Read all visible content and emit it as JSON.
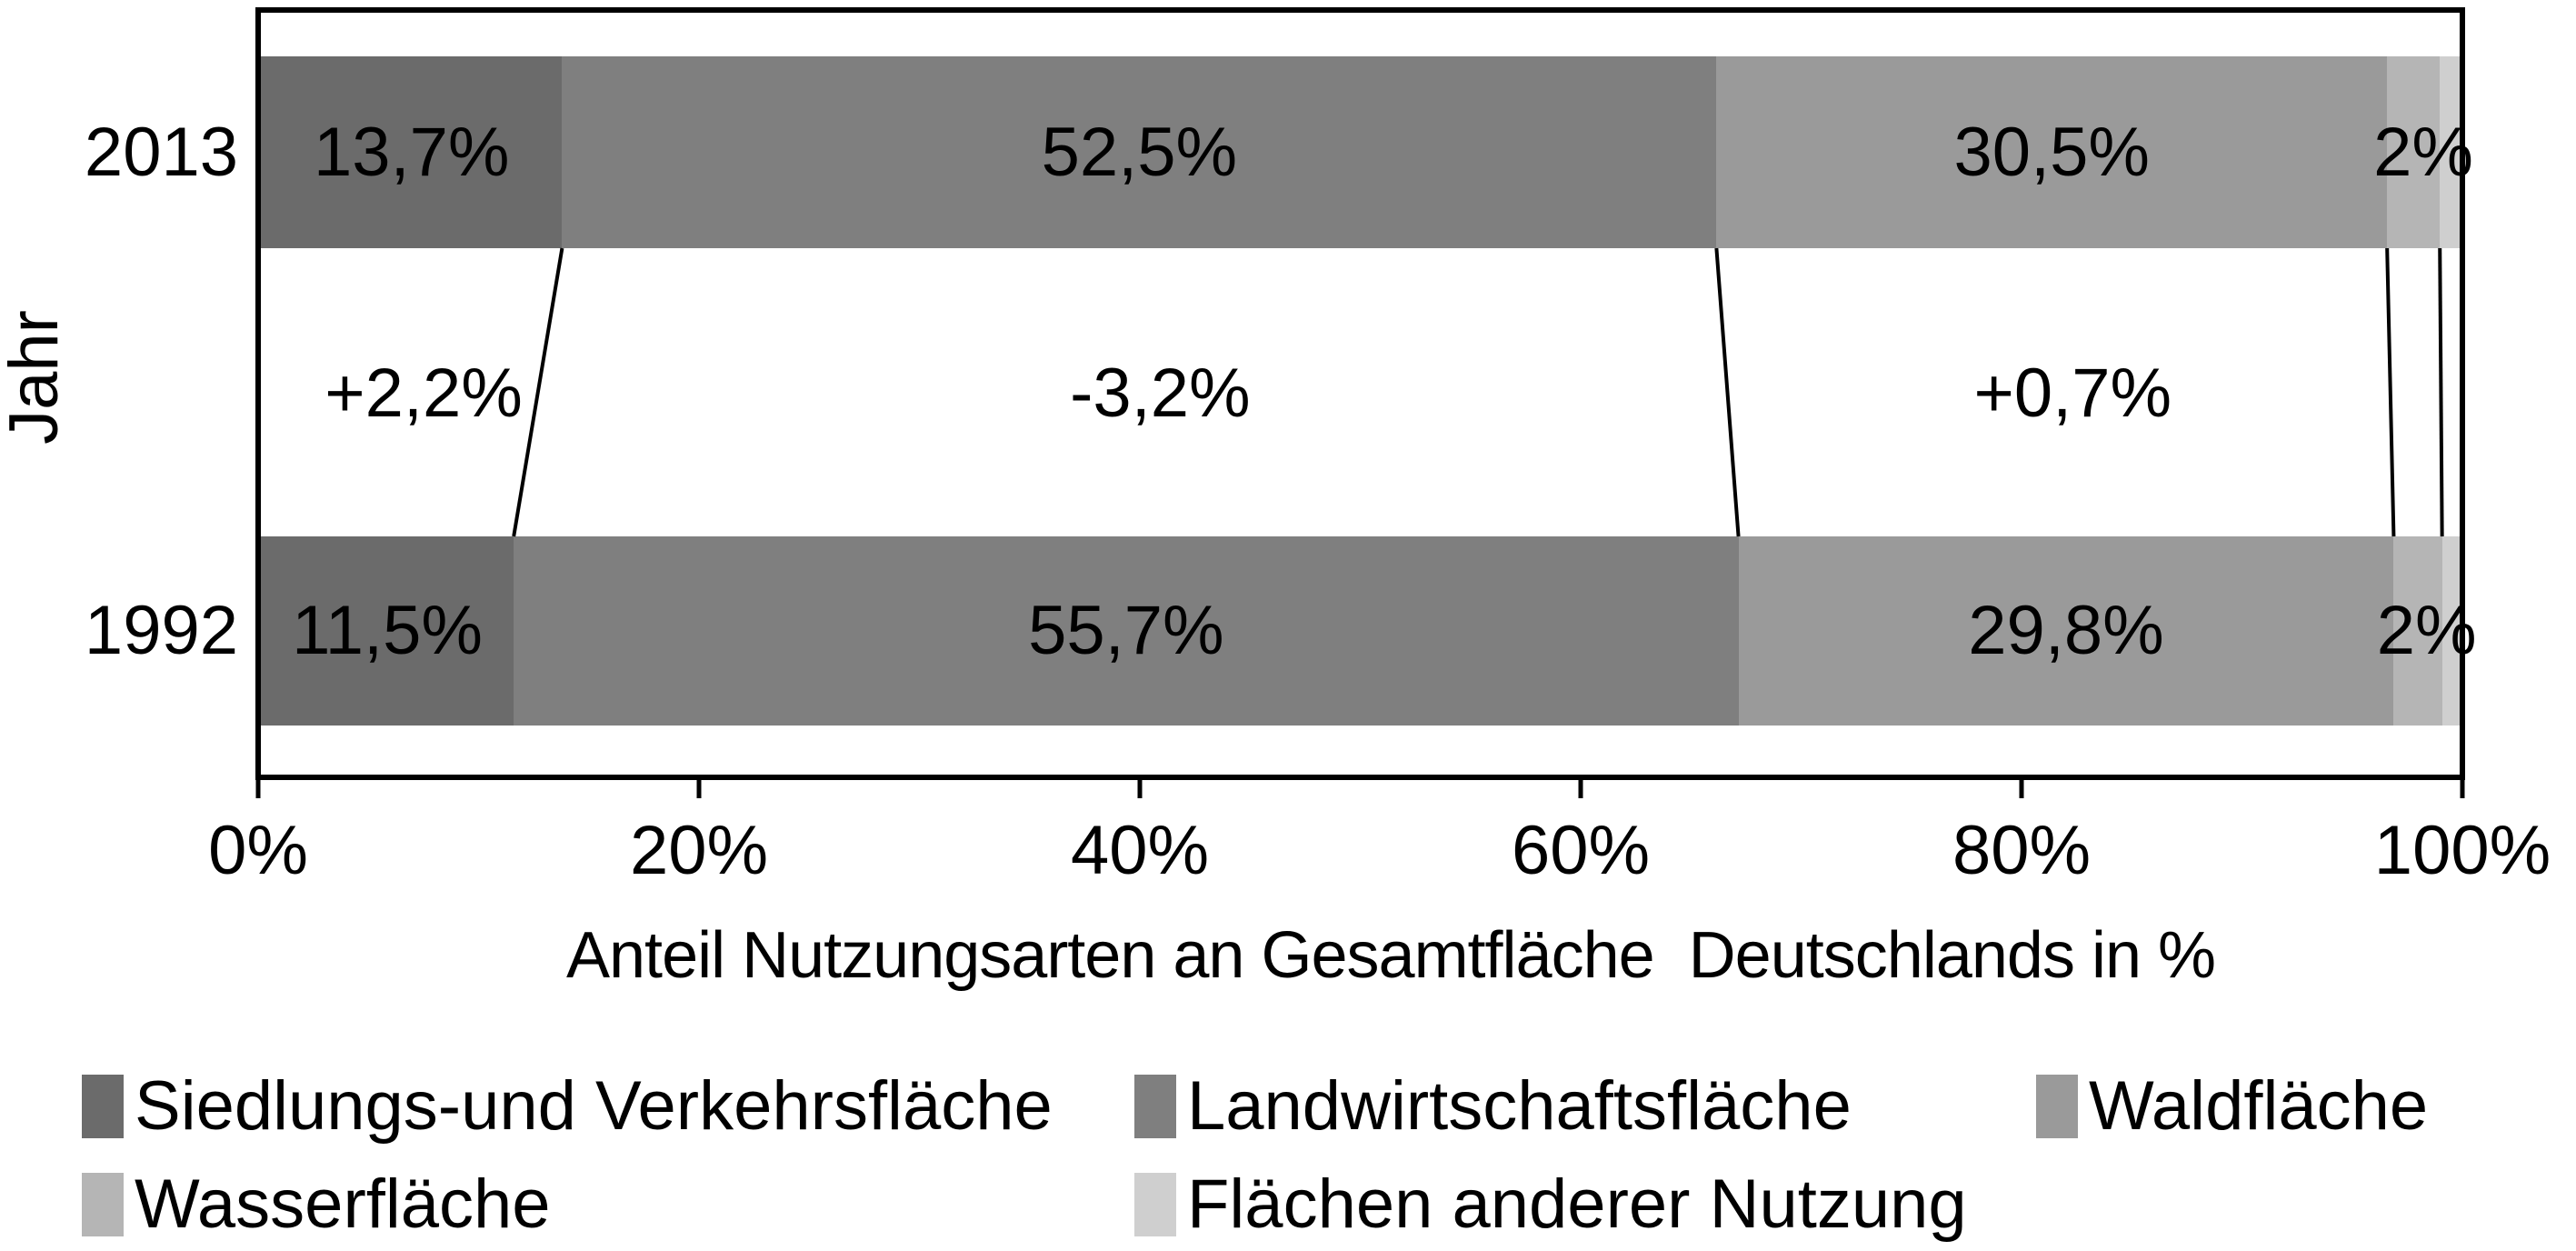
{
  "chart_data": {
    "type": "bar",
    "variant": "horizontal-stacked",
    "xlabel": "Anteil Nutzungsarten an Gesamtfläche  Deutschlands in %",
    "ylabel": "Jahr",
    "xlim": [
      0,
      100
    ],
    "grid": false,
    "legend_position": "bottom",
    "categories": [
      "2013",
      "1992"
    ],
    "series": [
      {
        "name": "Siedlungs-und Verkehrsfläche",
        "color": "#6b6b6b",
        "values": [
          13.7,
          11.5
        ]
      },
      {
        "name": "Landwirtschaftsfläche",
        "color": "#7f7f7f",
        "values": [
          52.5,
          55.7
        ]
      },
      {
        "name": "Waldfläche",
        "color": "#9a9a9a",
        "values": [
          30.5,
          29.8
        ]
      },
      {
        "name": "Wasserfläche",
        "color": "#b5b5b5",
        "values": [
          2.4,
          2.2
        ]
      },
      {
        "name": "Flächen anderer Nutzung",
        "color": "#cfcfcf",
        "values": [
          0.9,
          0.8
        ]
      }
    ],
    "bar_labels": [
      {
        "category": "2013",
        "items": [
          {
            "text": "13,7%",
            "x_pct": 6.85
          },
          {
            "text": "52,5%",
            "x_pct": 39.95
          },
          {
            "text": "30,5%",
            "x_pct": 81.45
          },
          {
            "text": "2%",
            "x_pct": 98.35
          }
        ]
      },
      {
        "category": "1992",
        "items": [
          {
            "text": "11,5%",
            "x_pct": 5.75
          },
          {
            "text": "55,7%",
            "x_pct": 39.35
          },
          {
            "text": "29,8%",
            "x_pct": 82.1
          },
          {
            "text": "2%",
            "x_pct": 98.5
          }
        ]
      }
    ],
    "change_labels": [
      {
        "text": "+2,2%",
        "x_pct": 7.4
      },
      {
        "text": "-3,2%",
        "x_pct": 40.9
      },
      {
        "text": "+0,7%",
        "x_pct": 82.4
      }
    ],
    "x_ticks": [
      {
        "label": "0%",
        "pct": 0
      },
      {
        "label": "20%",
        "pct": 20
      },
      {
        "label": "40%",
        "pct": 40
      },
      {
        "label": "60%",
        "pct": 60
      },
      {
        "label": "80%",
        "pct": 80
      },
      {
        "label": "100%",
        "pct": 100
      }
    ]
  }
}
